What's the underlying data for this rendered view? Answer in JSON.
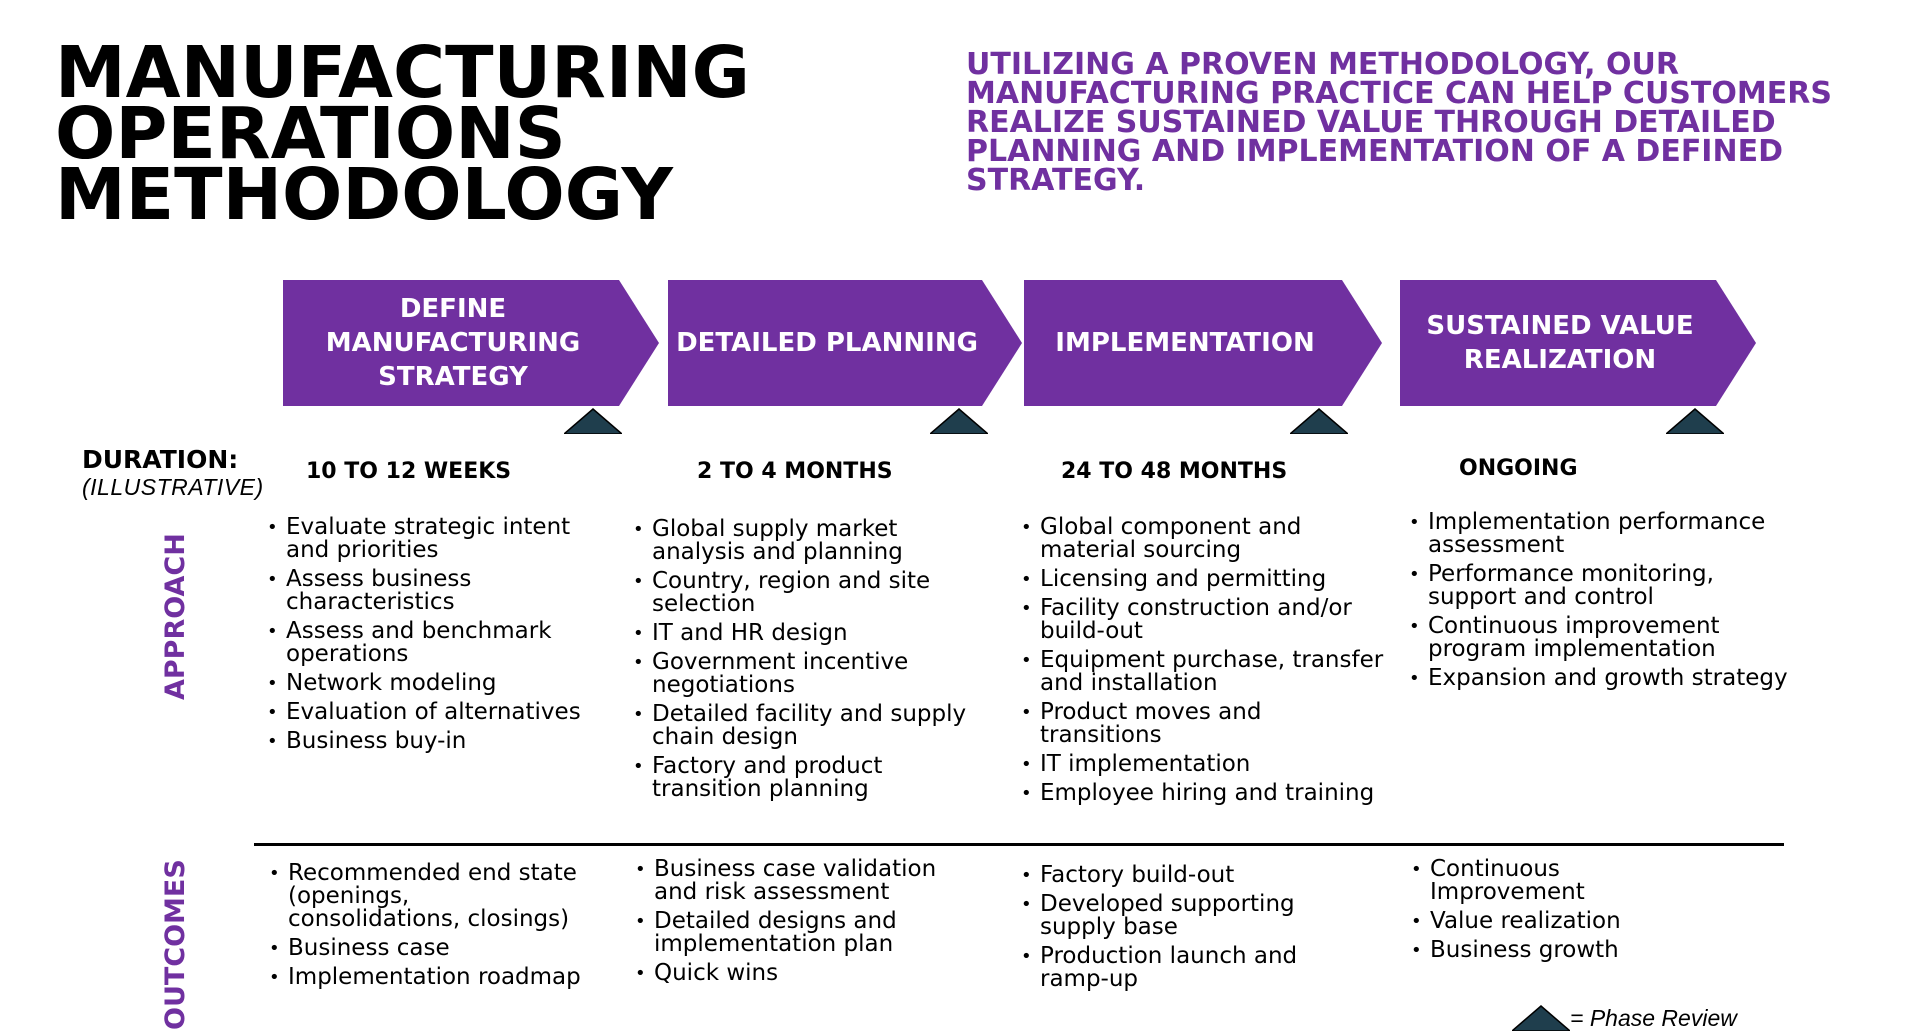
{
  "title": {
    "line1": "MANUFACTURING",
    "line2": "OPERATIONS",
    "line3": "METHODOLOGY"
  },
  "tagline": {
    "line1": "UTILIZING A PROVEN METHODOLOGY, OUR",
    "line2": "MANUFACTURING PRACTICE CAN HELP CUSTOMERS",
    "line3": "REALIZE SUSTAINED VALUE THROUGH DETAILED",
    "line4": "PLANNING AND IMPLEMENTATION OF A DEFINED",
    "line5": "STRATEGY."
  },
  "colors": {
    "accent": "#7030a0",
    "phase_review_marker": "#1f3e4d"
  },
  "duration_label": "DURATION:",
  "duration_sublabel": "(ILLUSTRATIVE)",
  "side_labels": {
    "approach": "APPROACH",
    "outcomes": "OUTCOMES"
  },
  "phases": [
    {
      "title_lines": [
        "DEFINE",
        "MANUFACTURING",
        "STRATEGY"
      ],
      "duration": "10 TO 12 WEEKS",
      "approach": [
        [
          "Evaluate strategic intent",
          "and priorities"
        ],
        [
          "Assess business",
          "characteristics"
        ],
        [
          "Assess and benchmark",
          "operations"
        ],
        [
          "Network modeling"
        ],
        [
          "Evaluation of alternatives"
        ],
        [
          "Business buy-in"
        ]
      ],
      "outcomes": [
        [
          "Recommended end state",
          "(openings,",
          "consolidations, closings)"
        ],
        [
          "Business case"
        ],
        [
          "Implementation roadmap"
        ]
      ]
    },
    {
      "title_lines": [
        "DETAILED PLANNING"
      ],
      "duration": "2 TO 4 MONTHS",
      "approach": [
        [
          "Global supply market",
          "analysis and planning"
        ],
        [
          "Country, region and site",
          "selection"
        ],
        [
          "IT and HR design"
        ],
        [
          "Government incentive",
          "negotiations"
        ],
        [
          "Detailed facility and supply",
          "chain design"
        ],
        [
          "Factory and product",
          "transition planning"
        ]
      ],
      "outcomes": [
        [
          "Business case validation",
          "and risk assessment"
        ],
        [
          "Detailed designs and",
          "implementation plan"
        ],
        [
          "Quick wins"
        ]
      ]
    },
    {
      "title_lines": [
        "IMPLEMENTATION"
      ],
      "duration": "24 TO 48 MONTHS",
      "approach": [
        [
          "Global component and",
          "material sourcing"
        ],
        [
          "Licensing and permitting"
        ],
        [
          "Facility construction and/or",
          "build-out"
        ],
        [
          "Equipment purchase, transfer",
          "and installation"
        ],
        [
          "Product moves and",
          "transitions"
        ],
        [
          "IT implementation"
        ],
        [
          "Employee hiring and training"
        ]
      ],
      "outcomes": [
        [
          "Factory build-out"
        ],
        [
          "Developed supporting",
          "supply base"
        ],
        [
          "Production launch and",
          "ramp-up"
        ]
      ]
    },
    {
      "title_lines": [
        "SUSTAINED VALUE",
        "REALIZATION"
      ],
      "duration": "ONGOING",
      "approach": [
        [
          "Implementation performance",
          "assessment"
        ],
        [
          "Performance monitoring,",
          "support and  control"
        ],
        [
          "Continuous improvement",
          "program implementation"
        ],
        [
          "Expansion and growth strategy"
        ]
      ],
      "outcomes": [
        [
          "Continuous",
          "Improvement"
        ],
        [
          "Value realization"
        ],
        [
          "Business growth"
        ]
      ]
    }
  ],
  "legend": {
    "text": "= Phase Review",
    "icon": "phase-review-triangle-icon"
  }
}
